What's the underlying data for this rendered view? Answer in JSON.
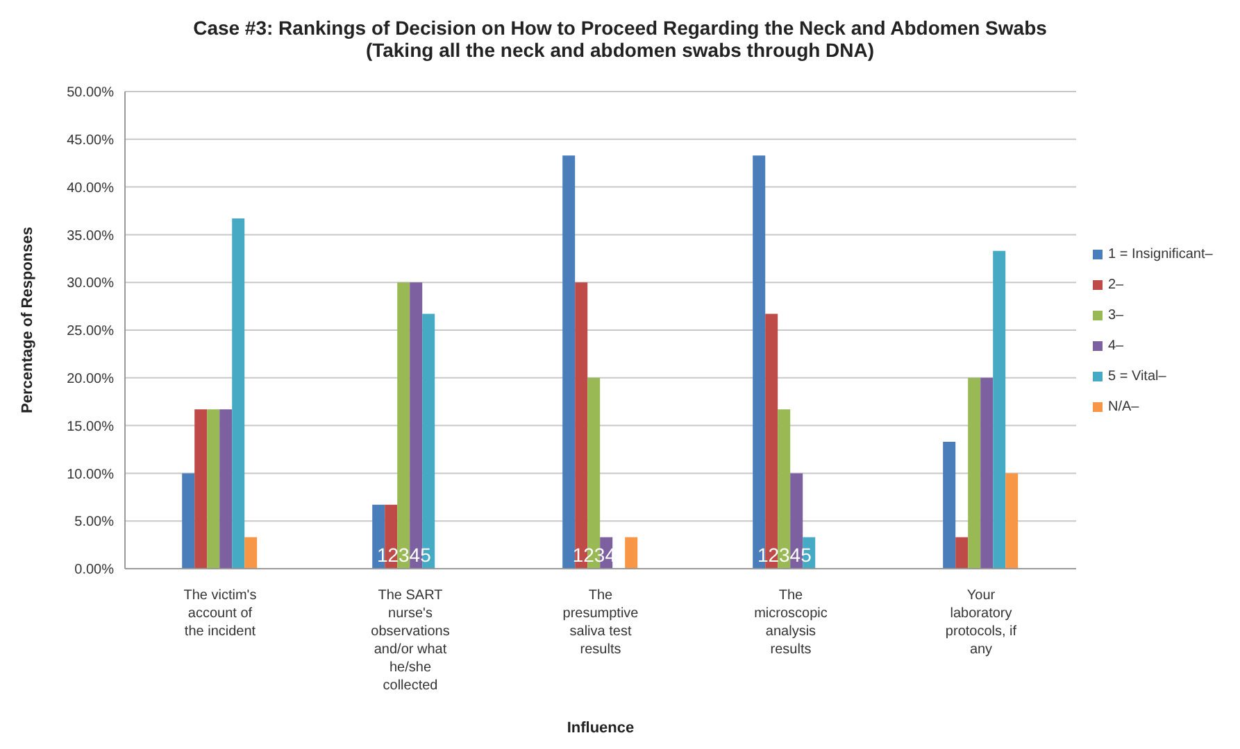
{
  "chart_data": {
    "type": "bar",
    "title": "Case #3: Rankings of Decision on How to Proceed Regarding the Neck and Abdomen Swabs",
    "subtitle": "(Taking all the neck and abdomen swabs through DNA)",
    "xlabel": "Influence",
    "ylabel": "Percentage of Responses",
    "categories": [
      "The victim's account of the incident",
      "The SART nurse's observations and/or what he/she collected",
      "The presumptive saliva test results",
      "The microscopic analysis results",
      "Your laboratory protocols, if any"
    ],
    "series": [
      {
        "name": "1 = Insignificant–",
        "color": "#4a7ebb",
        "values": [
          10,
          6.7,
          43.3,
          43.3,
          13.3
        ]
      },
      {
        "name": "2–",
        "color": "#be4b48",
        "values": [
          16.7,
          6.7,
          30,
          26.7,
          3.3
        ]
      },
      {
        "name": "3–",
        "color": "#98b954",
        "values": [
          16.7,
          30,
          20,
          16.7,
          20
        ]
      },
      {
        "name": "4–",
        "color": "#7d60a0",
        "values": [
          16.7,
          30,
          3.3,
          10,
          20
        ]
      },
      {
        "name": "5 = Vital–",
        "color": "#46aac5",
        "values": [
          36.7,
          26.7,
          0,
          3.3,
          33.3
        ]
      },
      {
        "name": "N/A–",
        "color": "#f79646",
        "values": [
          3.3,
          0,
          3.3,
          0,
          10
        ]
      }
    ],
    "ylim": [
      0,
      50
    ],
    "yticks": [
      {
        "value": 0,
        "label": "0.00%"
      },
      {
        "value": 5,
        "label": "5.00%"
      },
      {
        "value": 10,
        "label": "10.00%"
      },
      {
        "value": 15,
        "label": "15.00%"
      },
      {
        "value": 20,
        "label": "20.00%"
      },
      {
        "value": 25,
        "label": "25.00%"
      },
      {
        "value": 30,
        "label": "30.00%"
      },
      {
        "value": 35,
        "label": "35.00%"
      },
      {
        "value": 40,
        "label": "40.00%"
      },
      {
        "value": 45,
        "label": "45.00%"
      },
      {
        "value": 50,
        "label": "50.00%"
      }
    ],
    "grid": "y",
    "legend": "right",
    "annotations": [
      {
        "text": "12345",
        "x": "The SART nurse's observations and/or what he/she collected",
        "y": 0
      },
      {
        "text": "1234",
        "x": "The presumptive saliva test results",
        "y": 0
      },
      {
        "text": "12345",
        "x": "The microscopic analysis results",
        "y": 0
      }
    ]
  }
}
